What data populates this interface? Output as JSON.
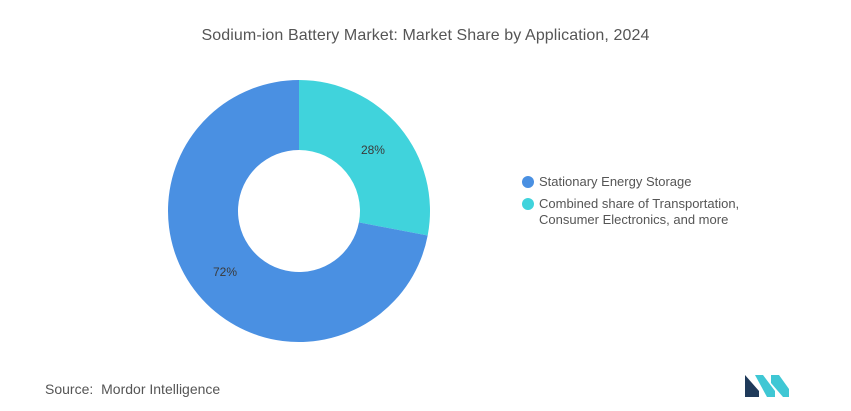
{
  "chart_data": {
    "type": "pie",
    "variant": "donut",
    "title": "Sodium-ion Battery Market: Market Share by Application, 2024",
    "categories": [
      "Stationary Energy Storage",
      "Combined share of Transportation,\nConsumer Electronics, and more"
    ],
    "values": [
      72,
      28
    ],
    "data_labels": [
      "72%",
      "28%"
    ],
    "colors": [
      "#4a90e2",
      "#40d3dc"
    ],
    "legend_placement": "right",
    "start_angle": "12 o'clock, clockwise: 28% slice first"
  },
  "source": {
    "label": "Source:",
    "text": "Mordor Intelligence"
  },
  "logo": {
    "icon": "mordor-intelligence-logo-icon",
    "colors": [
      "#1f3a5a",
      "#3fc7d4"
    ]
  }
}
